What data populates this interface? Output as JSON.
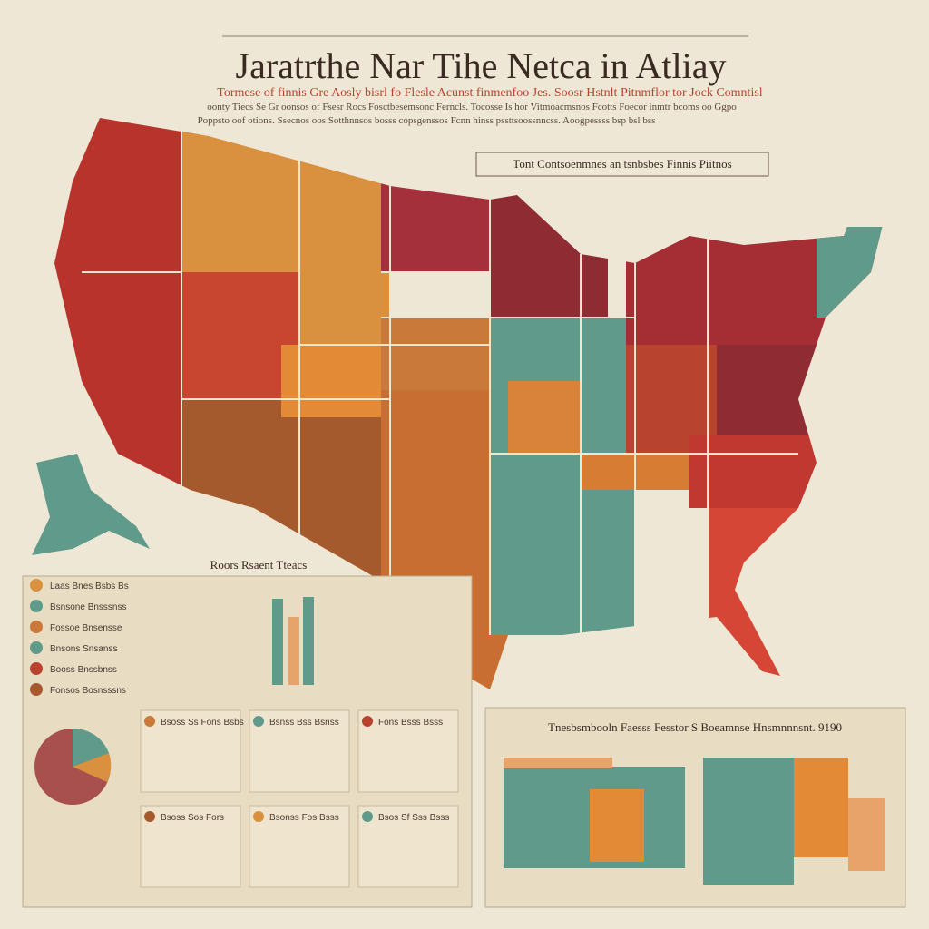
{
  "header": {
    "title": "Jaratrthe Nar Tihe Netca in Atliay",
    "subtitle": "Tormese of finnis Gre Aosly bisrl fo Flesle Acunst finmenfoo Jes. Soosr Hstnlt Pitnmflor tor Jock Comntisl",
    "subline": "oonty Tiecs Se Gr oonsos of Fsesr Rocs Fosctbesemsonc Ferncls. Tocosse Is hor Vitmoacmsnos Fcotts Foecor inmtr bcoms oo Ggpo",
    "subline2": "Poppsto oof otions. Ssecnos oos Sotthnnsos bosss copsgenssos Fcnn hinss pssttsoossnncss. Aoogpessss bsp bsl bss"
  },
  "map_box": {
    "label": "Tont Contsoenmnes an tsnbsbes Finnis Piitnos"
  },
  "left_panel": {
    "title": "Roors Rsaent Tteacs",
    "items": [
      "Laas Bnes Bsbs Bs",
      "Bsnsone Bnsssnss",
      "Fossoe Bnsensse",
      "Bnsons Snsanss",
      "Booss Bnssbnss",
      "Fonsos Bosnsssns"
    ],
    "cards": [
      "Bsoss Ss Fons Bsbs",
      "Bsnss Bss Bsnss",
      "Fons Bsss Bsss",
      "Bsoss Sos Fors",
      "Bsonss Fos Bsss",
      "Bsos Sf Sss Bsss"
    ]
  },
  "right_panel": {
    "title": "Tnesbsmbooln Faesss Fesstor S Boeamnse Hnsmnnnsnt. 9190"
  }
}
